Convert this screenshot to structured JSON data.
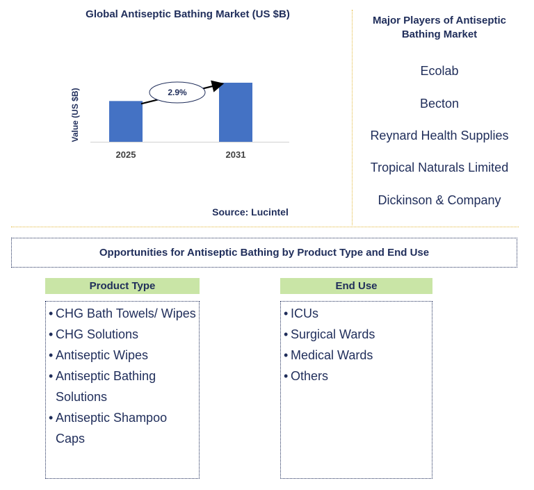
{
  "chart_data": {
    "type": "bar",
    "title": "Global Antiseptic Bathing Market (US $B)",
    "ylabel": "Value (US $B)",
    "xlabel": "",
    "categories": [
      "2025",
      "2031"
    ],
    "values": [
      0.69,
      1.0
    ],
    "annotation": "2.9%",
    "bar_color": "#4472c4",
    "grid": false
  },
  "source": "Source: Lucintel",
  "players": {
    "title": "Major Players of Antiseptic Bathing Market",
    "items": [
      "Ecolab",
      "Becton",
      "Reynard Health Supplies",
      "Tropical Naturals Limited",
      "Dickinson & Company"
    ]
  },
  "opportunities": {
    "title": "Opportunities for Antiseptic Bathing by Product Type and End Use",
    "product_type": {
      "header": "Product Type",
      "items": [
        "CHG Bath Towels/ Wipes",
        "CHG Solutions",
        "Antiseptic Wipes",
        "Antiseptic Bathing Solutions",
        "Antiseptic Shampoo Caps"
      ]
    },
    "end_use": {
      "header": "End Use",
      "items": [
        "ICUs",
        "Surgical Wards",
        "Medical Wards",
        "Others"
      ]
    }
  },
  "colors": {
    "text": "#1f2d5a",
    "header_bg": "#c9e5a6",
    "divider": "#e3b83a"
  }
}
